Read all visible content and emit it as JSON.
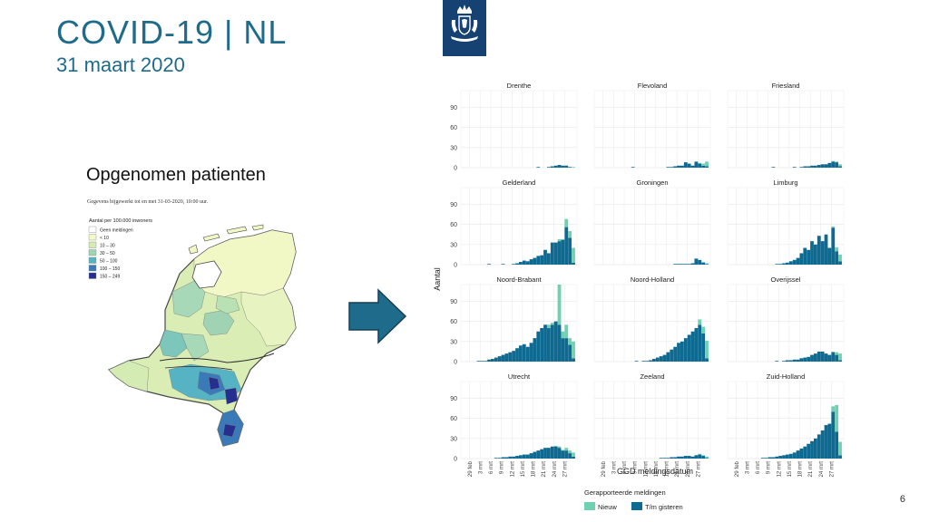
{
  "slide": {
    "title": "COVID-19 | NL",
    "date": "31 maart 2020",
    "page_number": "6",
    "colors": {
      "title": "#1f6b8c",
      "logo_bg": "#154273",
      "arrow": "#1f6b8c"
    }
  },
  "logo": {
    "icon": "rijksoverheid-coat-of-arms-icon"
  },
  "map": {
    "title": "Opgenomen patienten",
    "note": "Gegevens bijgewerkt tot en met 31-03-2020, 10:00 uur.",
    "legend_title": "Aantal per 100.000 inwoners",
    "legend": [
      {
        "label": "Geen meldingen",
        "color": "#ffffff"
      },
      {
        "label": "< 10",
        "color": "#f4f8c8"
      },
      {
        "label": "10 – 30",
        "color": "#d4ebb4"
      },
      {
        "label": "30 – 50",
        "color": "#9fd3b4"
      },
      {
        "label": "50 – 100",
        "color": "#55b3c4"
      },
      {
        "label": "100 – 150",
        "color": "#3a7ab8"
      },
      {
        "label": "150 – 249",
        "color": "#262e8e"
      }
    ]
  },
  "arrow": {
    "icon": "right-arrow-icon"
  },
  "chart_data": {
    "type": "bar",
    "stacked": true,
    "ylabel": "Aantal",
    "xlabel": "GGD meldingsdatum",
    "ylim": [
      0,
      115
    ],
    "yticks": [
      0,
      30,
      60,
      90
    ],
    "x_tick_labels": [
      "29 feb",
      "3 mrt",
      "6 mrt",
      "9 mrt",
      "12 mrt",
      "15 mrt",
      "18 mrt",
      "21 mrt",
      "24 mrt",
      "27 mrt"
    ],
    "x_range": [
      "2020-02-27",
      "2020-03-30"
    ],
    "legend_title": "Gerapporteerde meldingen",
    "series_legend": [
      {
        "name": "Nieuw",
        "color": "#6fd0b2"
      },
      {
        "name": "T/m gisteren",
        "color": "#0f6a92"
      }
    ],
    "grid": true,
    "panels": [
      {
        "name": "Drenthe",
        "tm_gisteren": [
          0,
          0,
          0,
          0,
          0,
          0,
          0,
          0,
          0,
          0,
          0,
          0,
          0,
          0,
          0,
          0,
          0,
          0,
          0,
          0,
          0,
          1,
          0,
          0,
          1,
          2,
          3,
          4,
          3,
          3,
          1,
          0
        ],
        "nieuw": [
          0,
          0,
          0,
          0,
          0,
          0,
          0,
          0,
          0,
          0,
          0,
          0,
          0,
          0,
          0,
          0,
          0,
          0,
          0,
          0,
          0,
          0,
          0,
          0,
          0,
          0,
          0,
          0,
          0,
          0,
          0,
          1
        ]
      },
      {
        "name": "Flevoland",
        "tm_gisteren": [
          0,
          0,
          0,
          0,
          0,
          0,
          0,
          0,
          0,
          0,
          1,
          0,
          0,
          0,
          0,
          0,
          0,
          0,
          0,
          0,
          1,
          1,
          2,
          3,
          3,
          8,
          6,
          3,
          9,
          6,
          3,
          2
        ],
        "nieuw": [
          0,
          0,
          0,
          0,
          0,
          0,
          0,
          0,
          0,
          0,
          0,
          0,
          0,
          0,
          0,
          0,
          0,
          0,
          0,
          0,
          0,
          0,
          0,
          0,
          0,
          0,
          0,
          0,
          0,
          1,
          3,
          7
        ]
      },
      {
        "name": "Friesland",
        "tm_gisteren": [
          0,
          0,
          0,
          0,
          0,
          0,
          0,
          0,
          0,
          0,
          0,
          0,
          1,
          0,
          0,
          0,
          0,
          0,
          1,
          0,
          1,
          2,
          2,
          3,
          3,
          4,
          5,
          5,
          7,
          9,
          8,
          2
        ],
        "nieuw": [
          0,
          0,
          0,
          0,
          0,
          0,
          0,
          0,
          0,
          0,
          0,
          0,
          0,
          0,
          0,
          0,
          0,
          0,
          0,
          0,
          0,
          0,
          0,
          0,
          0,
          0,
          0,
          0,
          0,
          1,
          1,
          3
        ]
      },
      {
        "name": "Gelderland",
        "tm_gisteren": [
          0,
          0,
          0,
          0,
          0,
          0,
          0,
          1,
          0,
          0,
          0,
          1,
          0,
          0,
          1,
          2,
          4,
          6,
          5,
          8,
          10,
          13,
          14,
          22,
          17,
          33,
          33,
          35,
          37,
          56,
          40,
          3
        ],
        "nieuw": [
          0,
          0,
          0,
          0,
          0,
          0,
          0,
          0,
          0,
          0,
          0,
          0,
          0,
          0,
          0,
          0,
          0,
          0,
          0,
          0,
          0,
          0,
          0,
          0,
          0,
          0,
          0,
          3,
          1,
          12,
          10,
          22
        ]
      },
      {
        "name": "Groningen",
        "tm_gisteren": [
          0,
          0,
          0,
          0,
          0,
          0,
          0,
          0,
          0,
          0,
          0,
          0,
          0,
          0,
          0,
          0,
          0,
          0,
          0,
          0,
          0,
          0,
          1,
          1,
          1,
          1,
          1,
          2,
          9,
          7,
          3,
          1
        ],
        "nieuw": [
          0,
          0,
          0,
          0,
          0,
          0,
          0,
          0,
          0,
          0,
          0,
          0,
          0,
          0,
          0,
          0,
          0,
          0,
          0,
          0,
          0,
          0,
          0,
          0,
          0,
          0,
          0,
          0,
          0,
          0,
          1,
          1
        ]
      },
      {
        "name": "Limburg",
        "tm_gisteren": [
          0,
          0,
          0,
          0,
          0,
          0,
          0,
          0,
          0,
          0,
          0,
          0,
          0,
          1,
          1,
          2,
          3,
          5,
          7,
          10,
          17,
          25,
          22,
          35,
          30,
          43,
          35,
          45,
          25,
          55,
          20,
          5
        ],
        "nieuw": [
          0,
          0,
          0,
          0,
          0,
          0,
          0,
          0,
          0,
          0,
          0,
          0,
          0,
          0,
          0,
          0,
          0,
          0,
          0,
          0,
          0,
          0,
          0,
          0,
          0,
          0,
          0,
          0,
          0,
          2,
          6,
          10
        ]
      },
      {
        "name": "Noord-Brabant",
        "tm_gisteren": [
          0,
          0,
          0,
          0,
          1,
          1,
          1,
          3,
          4,
          6,
          8,
          10,
          12,
          14,
          16,
          20,
          24,
          26,
          22,
          28,
          35,
          45,
          50,
          55,
          50,
          55,
          60,
          55,
          35,
          35,
          25,
          5
        ],
        "nieuw": [
          0,
          0,
          0,
          0,
          0,
          0,
          0,
          0,
          0,
          0,
          0,
          0,
          0,
          0,
          0,
          0,
          0,
          0,
          0,
          0,
          0,
          0,
          0,
          0,
          5,
          3,
          0,
          60,
          10,
          20,
          10,
          25
        ]
      },
      {
        "name": "Noord-Holland",
        "tm_gisteren": [
          0,
          0,
          0,
          0,
          0,
          0,
          0,
          0,
          0,
          0,
          0,
          1,
          0,
          1,
          1,
          2,
          4,
          6,
          8,
          10,
          14,
          18,
          22,
          28,
          30,
          35,
          40,
          45,
          50,
          55,
          42,
          5
        ],
        "nieuw": [
          0,
          0,
          0,
          0,
          0,
          0,
          0,
          0,
          0,
          0,
          0,
          0,
          0,
          0,
          0,
          0,
          0,
          0,
          0,
          0,
          0,
          0,
          0,
          0,
          0,
          0,
          0,
          0,
          0,
          8,
          10,
          26
        ]
      },
      {
        "name": "Overijssel",
        "tm_gisteren": [
          0,
          0,
          0,
          0,
          0,
          0,
          0,
          0,
          0,
          0,
          0,
          0,
          0,
          1,
          0,
          1,
          2,
          2,
          3,
          3,
          5,
          6,
          7,
          10,
          12,
          15,
          15,
          12,
          10,
          14,
          10,
          2
        ],
        "nieuw": [
          0,
          0,
          0,
          0,
          0,
          0,
          0,
          0,
          0,
          0,
          0,
          0,
          0,
          0,
          0,
          0,
          0,
          0,
          0,
          0,
          0,
          0,
          0,
          0,
          0,
          0,
          0,
          0,
          0,
          1,
          4,
          10
        ]
      },
      {
        "name": "Utrecht",
        "tm_gisteren": [
          0,
          0,
          0,
          0,
          0,
          0,
          0,
          0,
          0,
          1,
          1,
          2,
          2,
          3,
          3,
          4,
          5,
          6,
          6,
          8,
          10,
          12,
          14,
          16,
          16,
          18,
          18,
          16,
          12,
          12,
          8,
          3
        ],
        "nieuw": [
          0,
          0,
          0,
          0,
          0,
          0,
          0,
          0,
          0,
          0,
          0,
          0,
          0,
          0,
          0,
          0,
          0,
          0,
          0,
          0,
          0,
          0,
          0,
          0,
          0,
          0,
          1,
          2,
          1,
          4,
          4,
          6
        ]
      },
      {
        "name": "Zeeland",
        "tm_gisteren": [
          0,
          0,
          0,
          0,
          0,
          0,
          0,
          0,
          0,
          0,
          0,
          0,
          0,
          0,
          0,
          0,
          0,
          0,
          1,
          1,
          1,
          2,
          2,
          3,
          3,
          4,
          4,
          3,
          5,
          6,
          4,
          1
        ],
        "nieuw": [
          0,
          0,
          0,
          0,
          0,
          0,
          0,
          0,
          0,
          0,
          0,
          0,
          0,
          0,
          0,
          0,
          0,
          0,
          0,
          0,
          0,
          0,
          0,
          0,
          0,
          0,
          0,
          0,
          0,
          1,
          1,
          2
        ]
      },
      {
        "name": "Zuid-Holland",
        "tm_gisteren": [
          0,
          0,
          0,
          0,
          0,
          0,
          0,
          0,
          0,
          1,
          1,
          2,
          2,
          3,
          4,
          5,
          6,
          7,
          9,
          12,
          15,
          18,
          22,
          26,
          30,
          36,
          42,
          50,
          52,
          70,
          40,
          5
        ],
        "nieuw": [
          0,
          0,
          0,
          0,
          0,
          0,
          0,
          0,
          0,
          0,
          0,
          0,
          0,
          0,
          0,
          0,
          0,
          0,
          0,
          0,
          0,
          0,
          0,
          0,
          0,
          0,
          0,
          0,
          0,
          8,
          40,
          20
        ]
      }
    ]
  }
}
